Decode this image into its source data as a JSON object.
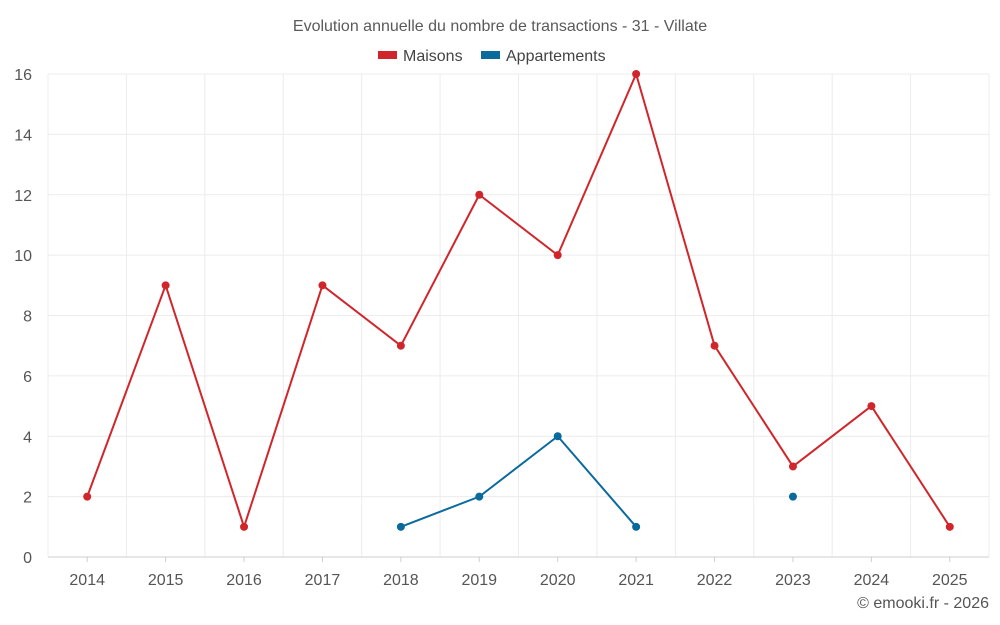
{
  "chart_data": {
    "type": "line",
    "title": "Evolution annuelle du nombre de transactions - 31 - Villate",
    "xlabel": "",
    "ylabel": "",
    "categories": [
      "2014",
      "2015",
      "2016",
      "2017",
      "2018",
      "2019",
      "2020",
      "2021",
      "2022",
      "2023",
      "2024",
      "2025"
    ],
    "ylim": [
      0,
      16
    ],
    "yticks": [
      0,
      2,
      4,
      6,
      8,
      10,
      12,
      14,
      16
    ],
    "grid": true,
    "legend_position": "top-center",
    "series": [
      {
        "name": "Maisons",
        "color": "#d0262b",
        "values": [
          2,
          9,
          1,
          9,
          7,
          12,
          10,
          16,
          7,
          3,
          5,
          1
        ]
      },
      {
        "name": "Appartements",
        "color": "#0a6a9c",
        "values": [
          null,
          null,
          null,
          null,
          1,
          2,
          4,
          1,
          null,
          2,
          null,
          null
        ]
      }
    ]
  },
  "credit": "© emooki.fr - 2026"
}
